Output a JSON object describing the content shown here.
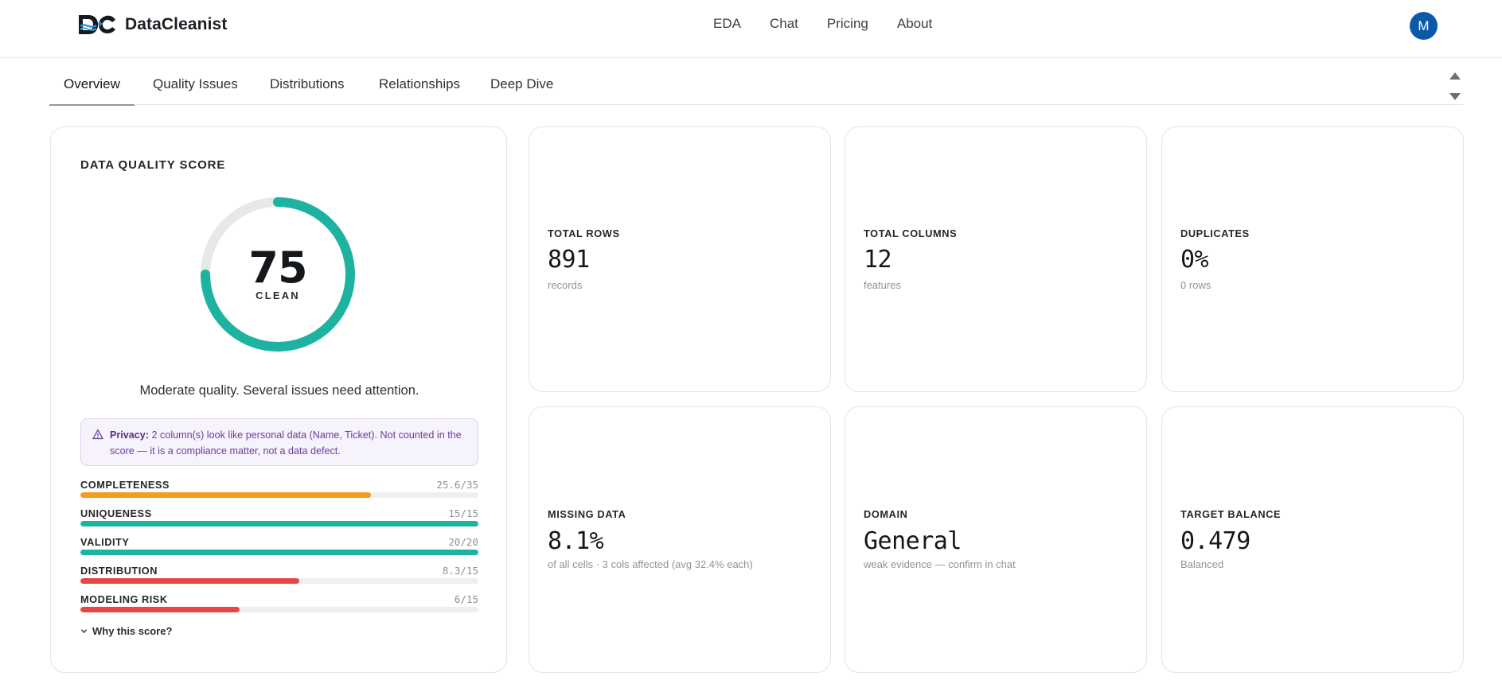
{
  "header": {
    "brand": "DataCleanist",
    "nav": [
      "EDA",
      "Chat",
      "Pricing",
      "About"
    ],
    "avatar_initial": "M"
  },
  "tabs": [
    "Overview",
    "Quality Issues",
    "Distributions",
    "Relationships",
    "Deep Dive"
  ],
  "quality": {
    "title": "DATA QUALITY SCORE",
    "score": "75",
    "score_fraction": 0.75,
    "score_label": "CLEAN",
    "description": "Moderate quality. Several issues need attention.",
    "privacy_label": "Privacy:",
    "privacy_text": "2 column(s) look like personal data (Name, Ticket). Not counted in the score — it is a compliance matter, not a data defect.",
    "metrics": [
      {
        "label": "COMPLETENESS",
        "value": "25.6/35",
        "fraction": 0.73,
        "color": "#f39c1f"
      },
      {
        "label": "UNIQUENESS",
        "value": "15/15",
        "fraction": 1.0,
        "color": "#1eb3a0"
      },
      {
        "label": "VALIDITY",
        "value": "20/20",
        "fraction": 1.0,
        "color": "#1eb3a0"
      },
      {
        "label": "DISTRIBUTION",
        "value": "8.3/15",
        "fraction": 0.55,
        "color": "#e84545"
      },
      {
        "label": "MODELING RISK",
        "value": "6/15",
        "fraction": 0.4,
        "color": "#e84545"
      }
    ],
    "why_label": "Why this score?"
  },
  "stats": [
    {
      "label": "TOTAL ROWS",
      "value": "891",
      "sub": "records"
    },
    {
      "label": "TOTAL COLUMNS",
      "value": "12",
      "sub": "features"
    },
    {
      "label": "DUPLICATES",
      "value": "0%",
      "sub": "0 rows"
    },
    {
      "label": "MISSING DATA",
      "value": "8.1%",
      "sub": "of all cells · 3 cols affected (avg 32.4% each)"
    },
    {
      "label": "DOMAIN",
      "value": "General",
      "sub": "weak evidence — confirm in chat"
    },
    {
      "label": "TARGET BALANCE",
      "value": "0.479",
      "sub": "Balanced"
    }
  ],
  "colors": {
    "accent": "#1eb3a0",
    "warning": "#f39c1f",
    "danger": "#e84545",
    "avatar": "#0b5aa8",
    "privacy_text": "#6a3d9a"
  }
}
